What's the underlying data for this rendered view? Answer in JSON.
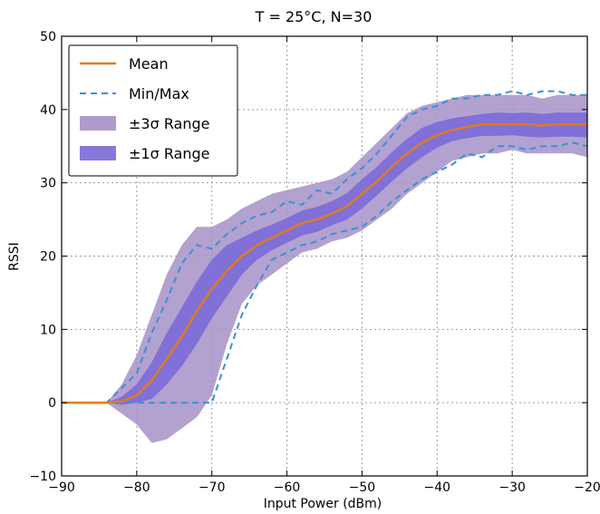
{
  "chart_data": {
    "type": "line",
    "title": "T = 25°C, N=30",
    "xlabel": "Input Power (dBm)",
    "ylabel": "RSSI",
    "xlim": [
      -90,
      -20
    ],
    "ylim": [
      -10,
      50
    ],
    "xticks": [
      -90,
      -80,
      -70,
      -60,
      -50,
      -40,
      -30,
      -20
    ],
    "yticks": [
      -10,
      0,
      10,
      20,
      30,
      40,
      50
    ],
    "grid": true,
    "legend_position": "top-left",
    "x": [
      -90,
      -88,
      -86,
      -84,
      -82,
      -80,
      -78,
      -76,
      -74,
      -72,
      -70,
      -68,
      -66,
      -64,
      -62,
      -60,
      -58,
      -56,
      -54,
      -52,
      -50,
      -48,
      -46,
      -44,
      -42,
      -40,
      -38,
      -36,
      -34,
      -32,
      -30,
      -28,
      -26,
      -24,
      -22,
      -20
    ],
    "series": [
      {
        "name": "Mean",
        "kind": "line",
        "color": "#e07b20",
        "values": [
          0,
          0,
          0,
          0,
          0.2,
          1.0,
          3.0,
          6.0,
          9.0,
          12.5,
          15.5,
          18.0,
          20.0,
          21.5,
          22.5,
          23.5,
          24.5,
          25.0,
          25.8,
          26.8,
          28.5,
          30.2,
          32.2,
          34.0,
          35.5,
          36.5,
          37.2,
          37.6,
          38.0,
          38.0,
          38.0,
          38.0,
          37.8,
          38.0,
          38.0,
          38.0
        ]
      },
      {
        "name": "Min/Max",
        "kind": "dashed",
        "color": "#3c8fd6",
        "min": [
          0,
          0,
          0,
          0,
          0,
          0,
          0,
          0,
          0,
          0,
          0,
          6.0,
          12.0,
          16.0,
          19.5,
          20.5,
          21.5,
          22.0,
          23.0,
          23.5,
          24.0,
          25.5,
          27.5,
          29.0,
          30.5,
          31.5,
          32.5,
          34.0,
          33.5,
          35.0,
          35.0,
          34.5,
          35.0,
          35.0,
          35.5,
          35.0
        ],
        "max": [
          0,
          0,
          0,
          0,
          2.0,
          4.0,
          9.5,
          14.0,
          19.0,
          21.5,
          21.0,
          23.0,
          24.5,
          25.5,
          26.0,
          27.5,
          27.0,
          29.0,
          28.5,
          30.5,
          32.0,
          34.0,
          36.5,
          39.0,
          40.0,
          40.5,
          41.5,
          41.5,
          42.0,
          42.0,
          42.5,
          42.0,
          42.5,
          42.5,
          42.0,
          42.0
        ]
      },
      {
        "name": "±3σ Range",
        "kind": "band",
        "color": "#a690c8",
        "lower": [
          0,
          0,
          0,
          0,
          -1.5,
          -3.0,
          -5.5,
          -5.0,
          -3.5,
          -2.0,
          1.0,
          8.0,
          13.5,
          16.0,
          17.5,
          19.0,
          20.5,
          21.0,
          22.0,
          22.5,
          23.5,
          25.0,
          26.5,
          28.5,
          30.0,
          31.5,
          33.0,
          33.5,
          34.0,
          34.0,
          34.5,
          34.0,
          34.0,
          34.0,
          34.0,
          33.5
        ],
        "upper": [
          0,
          0,
          0,
          0,
          2.5,
          6.5,
          12.0,
          17.5,
          21.5,
          24.0,
          24.0,
          25.0,
          26.5,
          27.5,
          28.5,
          29.0,
          29.5,
          30.0,
          30.5,
          31.5,
          33.5,
          35.5,
          37.5,
          39.5,
          40.5,
          41.0,
          41.5,
          42.0,
          42.0,
          42.0,
          42.0,
          42.0,
          41.5,
          42.0,
          42.0,
          42.0
        ]
      },
      {
        "name": "±1σ Range",
        "kind": "band",
        "color": "#7a6ad8",
        "lower": [
          0,
          0,
          0,
          0,
          -0.3,
          0.0,
          0.5,
          2.5,
          5.0,
          8.0,
          11.5,
          14.5,
          17.5,
          19.5,
          20.8,
          21.8,
          22.8,
          23.3,
          24.2,
          25.0,
          26.5,
          28.3,
          30.2,
          32.0,
          33.5,
          34.8,
          35.7,
          36.1,
          36.4,
          36.4,
          36.5,
          36.3,
          36.2,
          36.3,
          36.3,
          36.2
        ],
        "upper": [
          0,
          0,
          0,
          0,
          0.8,
          2.5,
          5.5,
          9.5,
          13.0,
          16.5,
          19.5,
          21.5,
          22.5,
          23.5,
          24.3,
          25.2,
          26.2,
          26.7,
          27.5,
          28.6,
          30.5,
          32.2,
          34.2,
          36.0,
          37.5,
          38.3,
          38.8,
          39.1,
          39.4,
          39.6,
          39.5,
          39.6,
          39.4,
          39.6,
          39.6,
          39.6
        ]
      }
    ]
  }
}
